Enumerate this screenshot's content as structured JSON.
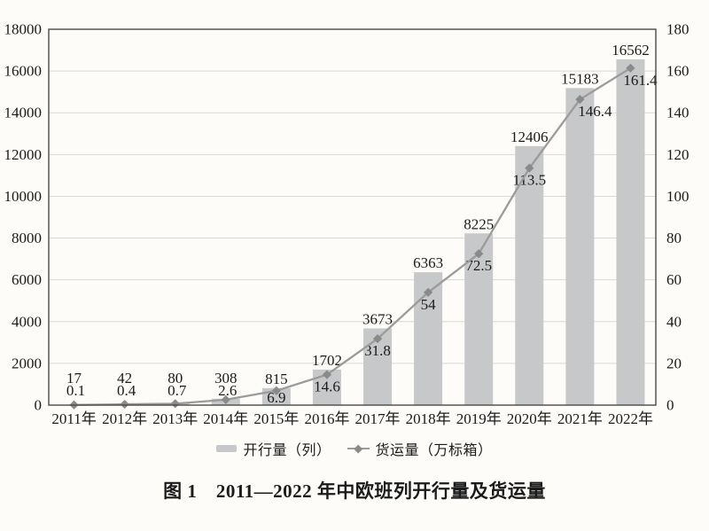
{
  "figure": {
    "caption": "图 1　2011—2022 年中欧班列开行量及货运量"
  },
  "chart_data": {
    "type": "bar+line",
    "title": "",
    "categories": [
      "2011年",
      "2012年",
      "2013年",
      "2014年",
      "2015年",
      "2016年",
      "2017年",
      "2018年",
      "2019年",
      "2020年",
      "2021年",
      "2022年"
    ],
    "series": [
      {
        "name": "开行量（列）",
        "type": "bar",
        "axis": "left",
        "values": [
          17,
          42,
          80,
          308,
          815,
          1702,
          3673,
          6363,
          8225,
          12406,
          15183,
          16562
        ]
      },
      {
        "name": "货运量（万标箱）",
        "type": "line",
        "axis": "right",
        "values": [
          0.1,
          0.4,
          0.7,
          2.6,
          6.9,
          14.6,
          31.8,
          54,
          72.5,
          113.5,
          146.4,
          161.4
        ]
      }
    ],
    "y_left": {
      "min": 0,
      "max": 18000,
      "step": 2000
    },
    "y_right": {
      "min": 0,
      "max": 180,
      "step": 20
    },
    "grid": true,
    "data_labels": true,
    "legend_position": "bottom",
    "colors": {
      "bar": "#c6c8ca",
      "line": "#9b9b9b",
      "marker": "#8a8a8a",
      "axis_border": "#4a4a4a",
      "gridline": "#dbd8d4",
      "text": "#1b1b1b",
      "background": "#fdfcf9"
    }
  }
}
